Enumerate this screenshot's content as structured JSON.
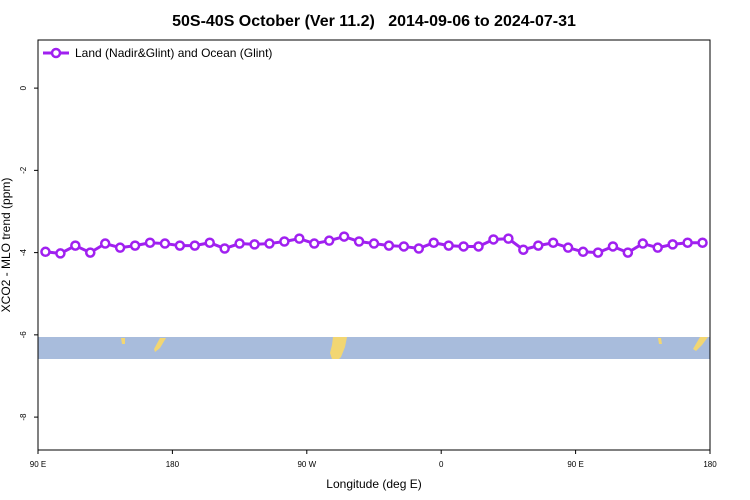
{
  "chart_data": {
    "type": "line",
    "title": "50S-40S October (Ver 11.2)   2014-09-06 to 2024-07-31",
    "xlabel": "Longitude (deg E)",
    "ylabel": "XCO2 - MLO trend (ppm)",
    "x": [
      95,
      105,
      115,
      125,
      135,
      145,
      155,
      165,
      175,
      185,
      195,
      205,
      215,
      225,
      235,
      245,
      255,
      265,
      275,
      285,
      295,
      305,
      315,
      325,
      335,
      345,
      355,
      365,
      375,
      385,
      395,
      405,
      415,
      425,
      435,
      445,
      455,
      465,
      475,
      485,
      495,
      505,
      515,
      525,
      535
    ],
    "series": [
      {
        "name": "Land (Nadir&Glint) and Ocean (Glint)",
        "color": "#a020f0",
        "values": [
          -3.98,
          -4.02,
          -3.83,
          -4.0,
          -3.78,
          -3.88,
          -3.83,
          -3.76,
          -3.78,
          -3.83,
          -3.83,
          -3.76,
          -3.9,
          -3.78,
          -3.8,
          -3.78,
          -3.73,
          -3.66,
          -3.78,
          -3.71,
          -3.61,
          -3.73,
          -3.78,
          -3.83,
          -3.85,
          -3.9,
          -3.76,
          -3.83,
          -3.85,
          -3.85,
          -3.68,
          -3.66,
          -3.93,
          -3.83,
          -3.76,
          -3.88,
          -3.98,
          -4.0,
          -3.85,
          -4.0,
          -3.78,
          -3.88,
          -3.8,
          -3.76,
          -3.76
        ]
      }
    ],
    "xlim": [
      90,
      540
    ],
    "xticks": [
      {
        "value": 90,
        "label": "90 E"
      },
      {
        "value": 180,
        "label": "180"
      },
      {
        "value": 270,
        "label": "90 W"
      },
      {
        "value": 360,
        "label": "0"
      },
      {
        "value": 450,
        "label": "90 E"
      },
      {
        "value": 540,
        "label": "180"
      }
    ],
    "ylim": [
      -8.8,
      1.17
    ],
    "yticks": [
      0,
      -2,
      -4,
      -6,
      -8
    ],
    "legend": "upper left"
  }
}
